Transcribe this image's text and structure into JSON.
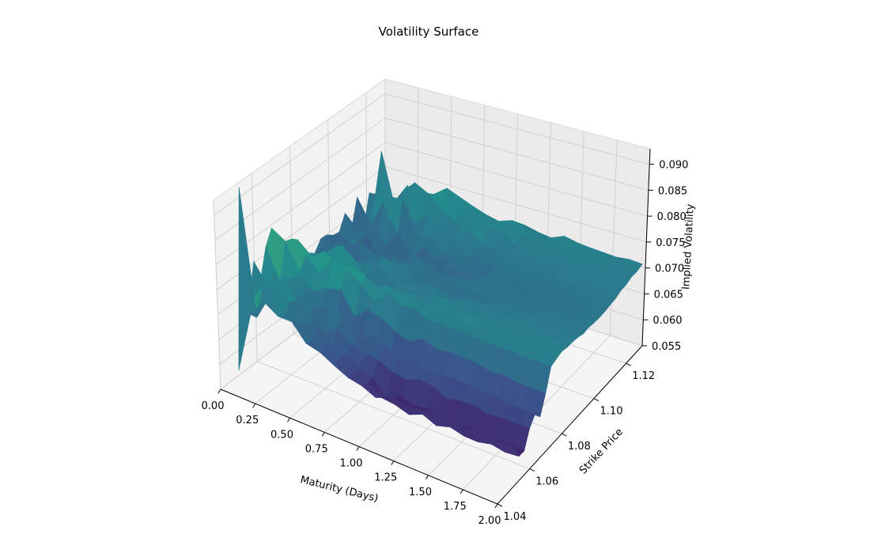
{
  "chart_data": {
    "type": "surface",
    "title": "Volatility Surface",
    "xlabel": "Maturity (Days)",
    "ylabel": "Strike Price",
    "zlabel": "Implied Volatility",
    "xlim": [
      0.0,
      2.0
    ],
    "ylim": [
      1.04,
      1.13
    ],
    "zlim": [
      0.055,
      0.093
    ],
    "x_ticks": [
      "0.00",
      "0.25",
      "0.50",
      "0.75",
      "1.00",
      "1.25",
      "1.50",
      "1.75",
      "2.00"
    ],
    "y_ticks": [
      "1.04",
      "1.06",
      "1.08",
      "1.10",
      "1.12"
    ],
    "z_ticks": [
      "0.055",
      "0.060",
      "0.065",
      "0.070",
      "0.075",
      "0.080",
      "0.085",
      "0.090"
    ],
    "colormap": [
      "#440154",
      "#3b528b",
      "#21918c",
      "#5ec962",
      "#fde725"
    ],
    "grid": true,
    "surface": {
      "maturity_days": [
        0.0,
        0.1,
        0.2,
        0.3,
        0.4,
        0.5,
        0.6,
        0.7,
        0.8,
        0.9,
        1.0,
        1.1,
        1.2,
        1.3,
        1.4,
        1.5,
        1.6,
        1.7,
        1.8,
        1.9,
        2.0
      ],
      "strike_range": [
        1.05,
        1.128
      ],
      "strike_steps": 24,
      "base_level": 0.071,
      "near_maturity_spike": {
        "maturity_days": 0.05,
        "strike": 1.05,
        "vol": 0.092
      },
      "near_maturity_dip": {
        "maturity_days": 0.05,
        "strike": 1.048,
        "vol": 0.056
      },
      "ridge": {
        "strike": 1.067,
        "peak_vol": 0.066
      },
      "trough": {
        "strike": 1.055,
        "min_vol": 0.056
      }
    }
  }
}
